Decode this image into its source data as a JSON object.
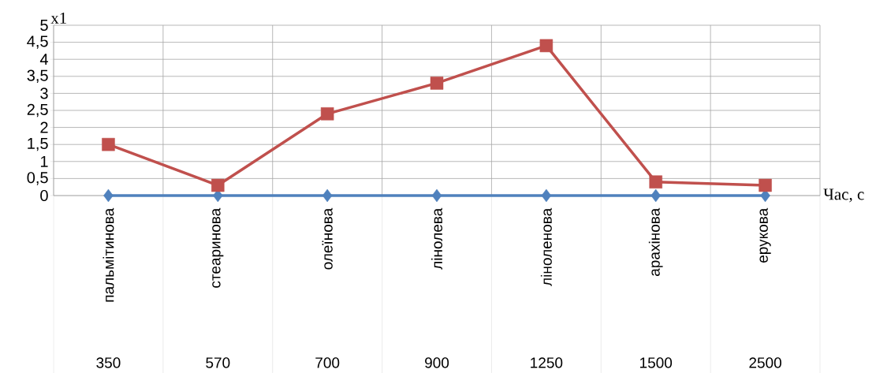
{
  "chart_data": {
    "type": "line",
    "xlabel": "Час, с",
    "ylabel": "x1",
    "categories": [
      "пальмітинова",
      "стеаринова",
      "олеїнова",
      "лінолева",
      "ліноленова",
      "арахінова",
      "ерукова"
    ],
    "annotations": [
      "350",
      "570",
      "700",
      "900",
      "1250",
      "1500",
      "2500"
    ],
    "series": [
      {
        "color": "#4f81bd",
        "marker": "diamond",
        "values": [
          0,
          0,
          0,
          0,
          0,
          0,
          0
        ]
      },
      {
        "color": "#c0504d",
        "marker": "square",
        "values": [
          1.5,
          0.3,
          2.4,
          3.3,
          4.4,
          0.4,
          0.3
        ]
      }
    ],
    "ylim": [
      0,
      5
    ],
    "yticks": [
      0,
      {
        "value": 0.5,
        "label": "0,5"
      },
      1,
      {
        "value": 1.5,
        "label": "1,5"
      },
      2,
      {
        "value": 2.5,
        "label": "2,5"
      },
      3,
      {
        "value": 3.5,
        "label": "3,5"
      },
      4,
      {
        "value": 4.5,
        "label": "4,5"
      },
      5
    ],
    "grid": true
  }
}
